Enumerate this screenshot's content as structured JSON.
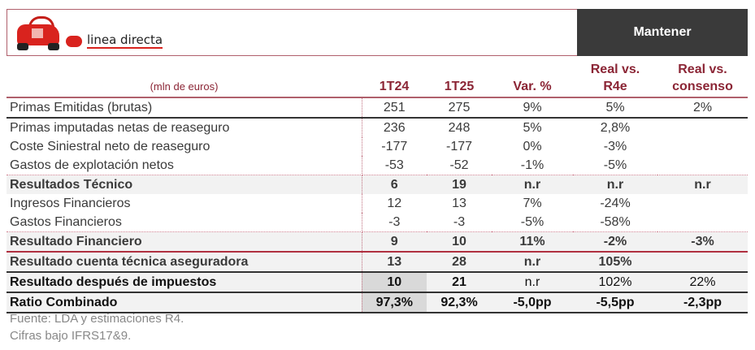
{
  "header": {
    "brand": "linea directa",
    "rating": "Mantener"
  },
  "table": {
    "unit": "(mln de euros)",
    "columns": [
      "1T24",
      "1T25",
      "Var. %",
      "Real vs. R4e",
      "Real vs. consenso"
    ],
    "col_lines": [
      [
        "",
        ""
      ],
      [
        "",
        ""
      ],
      [
        "",
        ""
      ],
      [
        "Real vs.",
        "R4e"
      ],
      [
        "Real vs.",
        "consenso"
      ]
    ],
    "rows": [
      {
        "label": "Primas Emitidas (brutas)",
        "v": [
          "251",
          "275",
          "9%",
          "5%",
          "2%"
        ]
      },
      {
        "label": "Primas imputadas netas de reaseguro",
        "v": [
          "236",
          "248",
          "5%",
          "2,8%",
          ""
        ]
      },
      {
        "label": "Coste Siniestral neto de reaseguro",
        "v": [
          "-177",
          "-177",
          "0%",
          "-3%",
          ""
        ]
      },
      {
        "label": "Gastos de explotación netos",
        "v": [
          "-53",
          "-52",
          "-1%",
          "-5%",
          ""
        ]
      },
      {
        "label": "Resultados Técnico",
        "v": [
          "6",
          "19",
          "n.r",
          "n.r",
          "n.r"
        ]
      },
      {
        "label": "Ingresos Financieros",
        "v": [
          "12",
          "13",
          "7%",
          "-24%",
          ""
        ]
      },
      {
        "label": "Gastos Financieros",
        "v": [
          "-3",
          "-3",
          "-5%",
          "-58%",
          ""
        ]
      },
      {
        "label": "Resultado Financiero",
        "v": [
          "9",
          "10",
          "11%",
          "-2%",
          "-3%"
        ]
      },
      {
        "label": "Resultado cuenta técnica aseguradora",
        "v": [
          "13",
          "28",
          "n.r",
          "105%",
          ""
        ]
      },
      {
        "label": "Resultado después de impuestos",
        "v": [
          "10",
          "21",
          "n.r",
          "102%",
          "22%"
        ]
      },
      {
        "label": "Ratio Combinado",
        "v": [
          "97,3%",
          "92,3%",
          "-5,0pp",
          "-5,5pp",
          "-2,3pp"
        ]
      }
    ]
  },
  "footer": [
    "Fuente: LDA y estimaciones R4.",
    "Cifras bajo IFRS17&9."
  ]
}
